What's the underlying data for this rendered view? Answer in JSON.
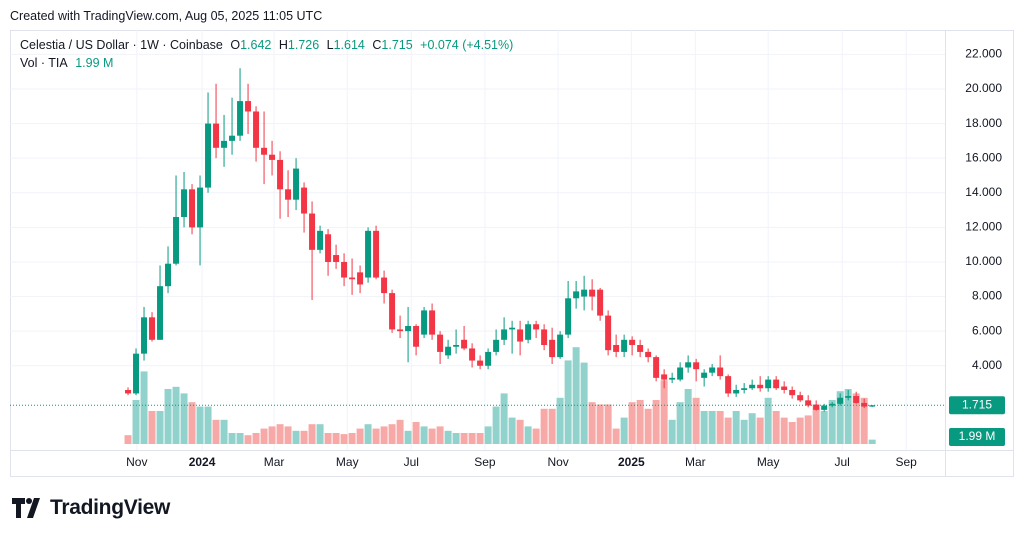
{
  "created": "Created with TradingView.com, Aug 05, 2025 11:05 UTC",
  "brand": "TradingView",
  "chart_data": {
    "type": "candlestick",
    "title": "Celestia / US Dollar · 1W · Coinbase",
    "ohlc_header": {
      "o_label": "O",
      "o": 1.642,
      "h_label": "H",
      "h": 1.726,
      "l_label": "L",
      "l": 1.614,
      "c_label": "C",
      "c": 1.715,
      "change": "+0.074 (+4.51%)"
    },
    "volume_title": "Vol · TIA",
    "up_color": "#089981",
    "down_color": "#f23645",
    "volume_up_color": "#92d2cc",
    "volume_down_color": "#f7a9a7",
    "open": [
      2.6,
      2.4,
      4.7,
      6.8,
      5.5,
      8.6,
      9.9,
      12.6,
      14.2,
      12,
      14.3,
      18,
      16.6,
      17,
      17.3,
      19.3,
      18.7,
      16.6,
      16.2,
      15.9,
      14.2,
      13.6,
      14.3,
      12.8,
      10.7,
      11.6,
      10.4,
      10,
      9.1,
      9.4,
      9.1,
      11.8,
      9.1,
      8.2,
      6.1,
      6.0,
      6.3,
      5.8,
      7.2,
      5.8,
      4.6,
      5.1,
      5.5,
      5.0,
      4.3,
      4.0,
      4.8,
      5.5,
      6.1,
      6.1,
      5.5,
      6.4,
      6.1,
      5.5,
      4.5,
      5.8,
      7.9,
      8.0,
      8.4,
      8.4,
      6.9,
      5.2,
      4.8,
      5.5,
      5.2,
      4.8,
      4.5,
      3.5,
      3.2,
      3.2,
      3.9,
      4.2,
      3.3,
      3.6,
      3.9,
      3.4,
      2.4,
      2.6,
      2.7,
      2.9,
      2.7,
      3.2,
      2.8,
      2.6,
      2.3,
      2.0,
      1.75,
      1.45,
      1.7,
      1.8,
      2.15,
      2.25,
      1.85,
      1.642
    ],
    "high": [
      2.75,
      5.0,
      7.4,
      7.1,
      9.8,
      10.9,
      15,
      15.2,
      14.5,
      15,
      19.8,
      20.3,
      18.5,
      19.5,
      21.2,
      20.3,
      19,
      18.7,
      17,
      16.4,
      15.3,
      16,
      14.6,
      13.5,
      12.1,
      11.9,
      11,
      10.5,
      10.2,
      9.8,
      12,
      12.1,
      9.5,
      8.4,
      6.9,
      7.4,
      6.4,
      7.4,
      7.6,
      6.0,
      5.5,
      6.1,
      6.3,
      5.3,
      4.6,
      5.0,
      6.1,
      6.8,
      6.6,
      6.6,
      6.6,
      6.6,
      6.4,
      6.2,
      6.0,
      8.9,
      8.9,
      9.2,
      9.0,
      8.5,
      7.2,
      5.8,
      5.8,
      5.7,
      5.5,
      5.0,
      4.6,
      3.8,
      3.6,
      4.2,
      4.6,
      4.4,
      3.8,
      4.1,
      4.6,
      3.5,
      2.9,
      3.0,
      3.2,
      3.4,
      3.4,
      3.4,
      3.1,
      2.8,
      2.5,
      2.3,
      2.0,
      1.8,
      1.9,
      2.4,
      2.6,
      2.5,
      2.1,
      1.726
    ],
    "low": [
      2.3,
      2.3,
      4.3,
      5.4,
      5.5,
      8.2,
      9.8,
      12.0,
      11.6,
      9.8,
      14,
      16.0,
      15.5,
      16.2,
      17.0,
      17.4,
      15.8,
      14.5,
      15.0,
      12.5,
      12.6,
      13.0,
      11.7,
      7.8,
      10.5,
      9.2,
      9.6,
      8.6,
      8.1,
      8.2,
      8.8,
      9.0,
      7.6,
      5.9,
      5.6,
      4.2,
      4.6,
      5.6,
      5.5,
      4.1,
      4.4,
      4.7,
      4.9,
      3.9,
      3.8,
      3.8,
      4.6,
      5.2,
      4.7,
      4.6,
      5.3,
      5.6,
      4.9,
      4.1,
      4.4,
      5.6,
      7.3,
      7.2,
      7.2,
      6.6,
      4.6,
      4.5,
      4.5,
      4.6,
      4.5,
      4.2,
      3.1,
      2.7,
      3.0,
      3.1,
      3.6,
      3.1,
      2.8,
      3.4,
      3.2,
      2.2,
      2.2,
      2.4,
      2.6,
      2.5,
      2.5,
      2.6,
      2.4,
      2.1,
      1.9,
      1.6,
      1.4,
      1.35,
      1.6,
      1.7,
      2.0,
      1.8,
      1.55,
      1.614
    ],
    "close": [
      2.4,
      4.7,
      6.8,
      5.5,
      8.6,
      9.9,
      12.6,
      14.2,
      12,
      14.3,
      18,
      16.6,
      17,
      17.3,
      19.3,
      18.7,
      16.6,
      16.2,
      15.9,
      14.2,
      13.6,
      15.4,
      12.8,
      10.7,
      11.8,
      10,
      10.0,
      9.1,
      9.0,
      8.7,
      11.8,
      9.1,
      8.2,
      6.1,
      6.0,
      6.3,
      5.1,
      7.2,
      5.8,
      4.8,
      5.1,
      5.2,
      5.0,
      4.3,
      4.0,
      4.8,
      5.5,
      6.1,
      6.2,
      5.4,
      6.4,
      6.1,
      5.2,
      4.5,
      5.8,
      7.9,
      8.3,
      8.4,
      8.0,
      6.9,
      4.9,
      4.8,
      5.5,
      5.2,
      4.8,
      4.5,
      3.3,
      3.2,
      3.3,
      3.9,
      4.2,
      3.8,
      3.6,
      3.9,
      3.4,
      2.4,
      2.6,
      2.7,
      2.9,
      2.7,
      3.2,
      2.7,
      2.6,
      2.3,
      2.0,
      1.7,
      1.45,
      1.7,
      1.8,
      2.15,
      2.25,
      1.85,
      1.64,
      1.715
    ],
    "volume": [
      4,
      20,
      33,
      15,
      15,
      25,
      26,
      23,
      19,
      17,
      17,
      11,
      11,
      5,
      5,
      4,
      5,
      7,
      8,
      9,
      8,
      6,
      6,
      9,
      9,
      5,
      5,
      4.5,
      5,
      7,
      9,
      7,
      8,
      9,
      11,
      6,
      10,
      8,
      7,
      8,
      6,
      5,
      5,
      5,
      5,
      8,
      17,
      23,
      12,
      11,
      8,
      7,
      16,
      16,
      21,
      38,
      44,
      37,
      19,
      18,
      18,
      7,
      12,
      19,
      20,
      16,
      20,
      29,
      11,
      19,
      25,
      21,
      15,
      15,
      15,
      12,
      15,
      11,
      14,
      12,
      21,
      15,
      12,
      10,
      12,
      13,
      18,
      15,
      20,
      24,
      25,
      23,
      21,
      1.99
    ],
    "volume_last_label": "1.99 M",
    "volume_lim": [
      0,
      50
    ],
    "last_price": 1.715,
    "xlim": [
      -14.75,
      102.1
    ],
    "xticks": [
      {
        "value": 1.1,
        "label": "Nov"
      },
      {
        "value": 9.25,
        "label": "2024"
      },
      {
        "value": 18.25,
        "label": "Mar"
      },
      {
        "value": 27.4,
        "label": "May"
      },
      {
        "value": 35.4,
        "label": "Jul"
      },
      {
        "value": 44.6,
        "label": "Sep"
      },
      {
        "value": 53.75,
        "label": "Nov"
      },
      {
        "value": 62.9,
        "label": "2025"
      },
      {
        "value": 70.9,
        "label": "Mar"
      },
      {
        "value": 80,
        "label": "May"
      },
      {
        "value": 89.25,
        "label": "Jul"
      },
      {
        "value": 97.25,
        "label": "Sep"
      }
    ],
    "ylim": [
      -0.87,
      23.41
    ],
    "yticks": [
      {
        "value": 4,
        "label": "4.000"
      },
      {
        "value": 6,
        "label": "6.000"
      },
      {
        "value": 8,
        "label": "8.000"
      },
      {
        "value": 10,
        "label": "10.000"
      },
      {
        "value": 12,
        "label": "12.000"
      },
      {
        "value": 14,
        "label": "14.000"
      },
      {
        "value": 16,
        "label": "16.000"
      },
      {
        "value": 18,
        "label": "18.000"
      },
      {
        "value": 20,
        "label": "20.000"
      },
      {
        "value": 22,
        "label": "22.000"
      }
    ],
    "grid": true
  }
}
